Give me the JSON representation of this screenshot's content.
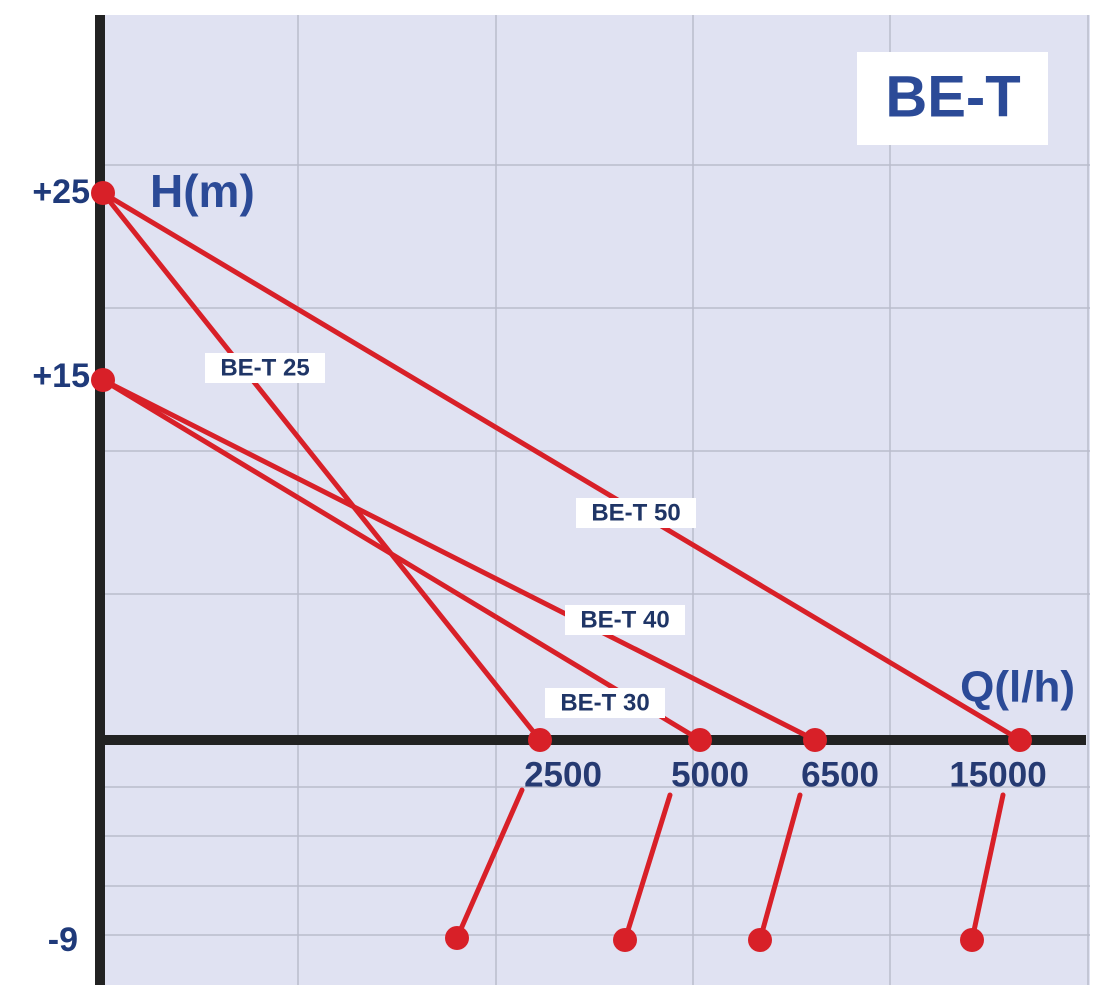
{
  "title": "BE-T",
  "y_axis_label": "H(m)",
  "x_axis_label": "Q(l/h)",
  "y_labels": [
    "+25",
    "+15",
    "-9"
  ],
  "x_labels": [
    "2500",
    "5000",
    "6500",
    "15000"
  ],
  "curve_labels": [
    "BE-T 25",
    "BE-T 50",
    "BE-T 40",
    "BE-T 30"
  ]
}
